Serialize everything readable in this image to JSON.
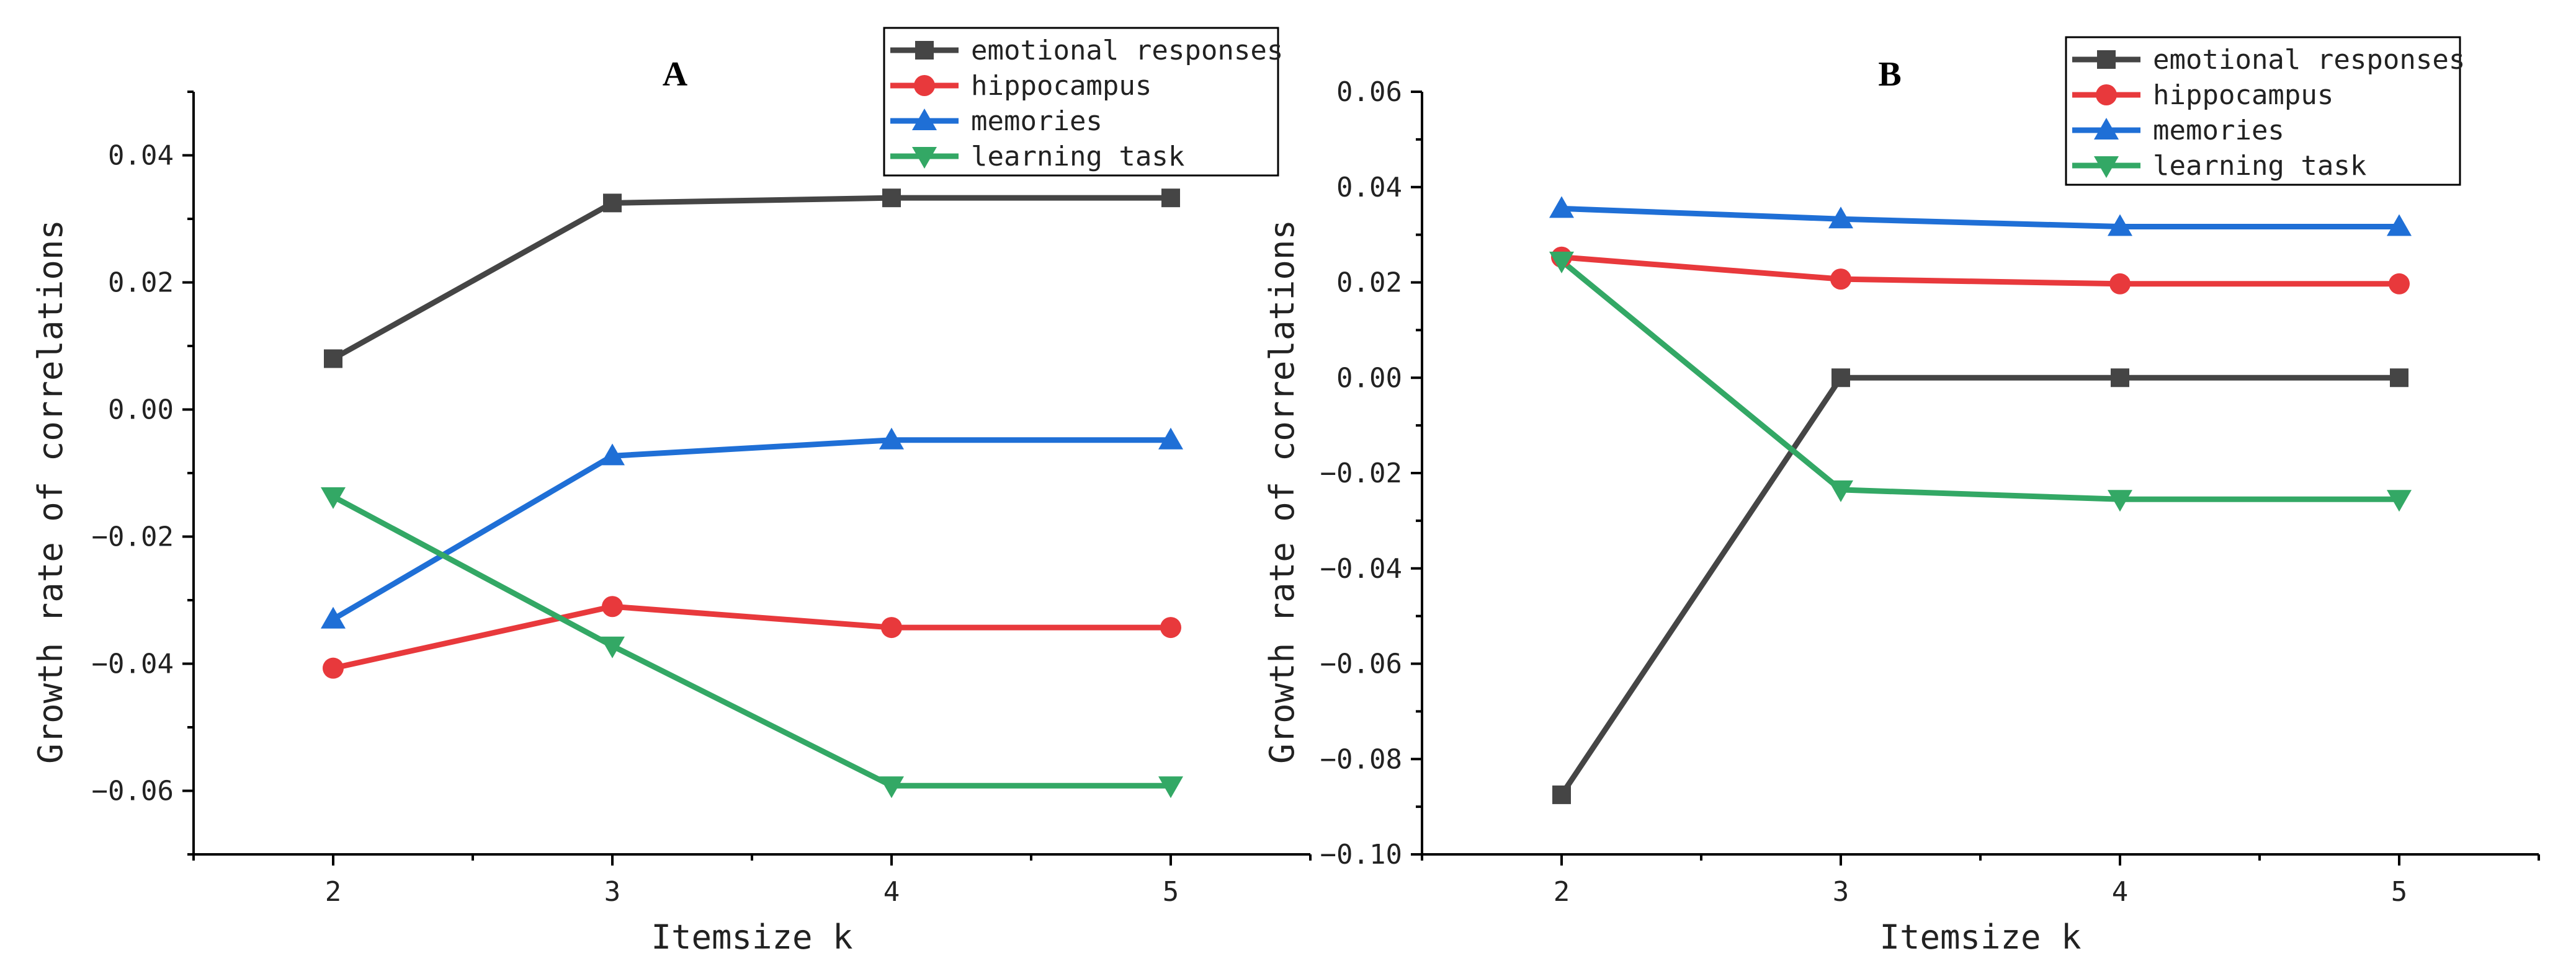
{
  "chart_data": [
    {
      "type": "line",
      "title": "A",
      "xlabel": "Itemsize k",
      "ylabel": "Growth rate of correlations",
      "x": [
        2,
        3,
        4,
        5
      ],
      "xlim": [
        1.5,
        5.5
      ],
      "ylim": [
        -0.07,
        0.05
      ],
      "y_ticks": [
        0.04,
        0.02,
        0.0,
        -0.02,
        -0.04,
        -0.06
      ],
      "y_tick_labels": [
        "0.04",
        "0.02",
        "0.00",
        "−0.02",
        "−0.04",
        "−0.06"
      ],
      "x_tick_labels": [
        "2",
        "3",
        "4",
        "5"
      ],
      "legend_position": "top-right",
      "series": [
        {
          "name": "emotional responses",
          "values": [
            0.008,
            0.0325,
            0.0333,
            0.0333
          ],
          "color": "#454545",
          "marker": "square"
        },
        {
          "name": "hippocampus",
          "values": [
            -0.0407,
            -0.031,
            -0.0343,
            -0.0343
          ],
          "color": "#e8393c",
          "marker": "circle"
        },
        {
          "name": "memories",
          "values": [
            -0.033,
            -0.0073,
            -0.0048,
            -0.0048
          ],
          "color": "#1f6fd6",
          "marker": "triangle-up"
        },
        {
          "name": "learning task",
          "values": [
            -0.0137,
            -0.0372,
            -0.0592,
            -0.0592
          ],
          "color": "#33a865",
          "marker": "triangle-down"
        }
      ]
    },
    {
      "type": "line",
      "title": "B",
      "xlabel": "Itemsize k",
      "ylabel": "Growth rate of correlations",
      "x": [
        2,
        3,
        4,
        5
      ],
      "xlim": [
        1.5,
        5.5
      ],
      "ylim": [
        -0.1,
        0.06
      ],
      "y_ticks": [
        0.06,
        0.04,
        0.02,
        0.0,
        -0.02,
        -0.04,
        -0.06,
        -0.08,
        -0.1
      ],
      "y_tick_labels": [
        "0.06",
        "0.04",
        "0.02",
        "0.00",
        "−0.02",
        "−0.04",
        "−0.06",
        "−0.08",
        "−0.10"
      ],
      "x_tick_labels": [
        "2",
        "3",
        "4",
        "5"
      ],
      "legend_position": "top-right",
      "series": [
        {
          "name": "emotional responses",
          "values": [
            -0.0875,
            0.0,
            0.0,
            0.0
          ],
          "color": "#454545",
          "marker": "square"
        },
        {
          "name": "hippocampus",
          "values": [
            0.0253,
            0.0207,
            0.0197,
            0.0197
          ],
          "color": "#e8393c",
          "marker": "circle"
        },
        {
          "name": "memories",
          "values": [
            0.0355,
            0.0333,
            0.0317,
            0.0317
          ],
          "color": "#1f6fd6",
          "marker": "triangle-up"
        },
        {
          "name": "learning task",
          "values": [
            0.0245,
            -0.0235,
            -0.0255,
            -0.0255
          ],
          "color": "#33a865",
          "marker": "triangle-down"
        }
      ]
    }
  ]
}
